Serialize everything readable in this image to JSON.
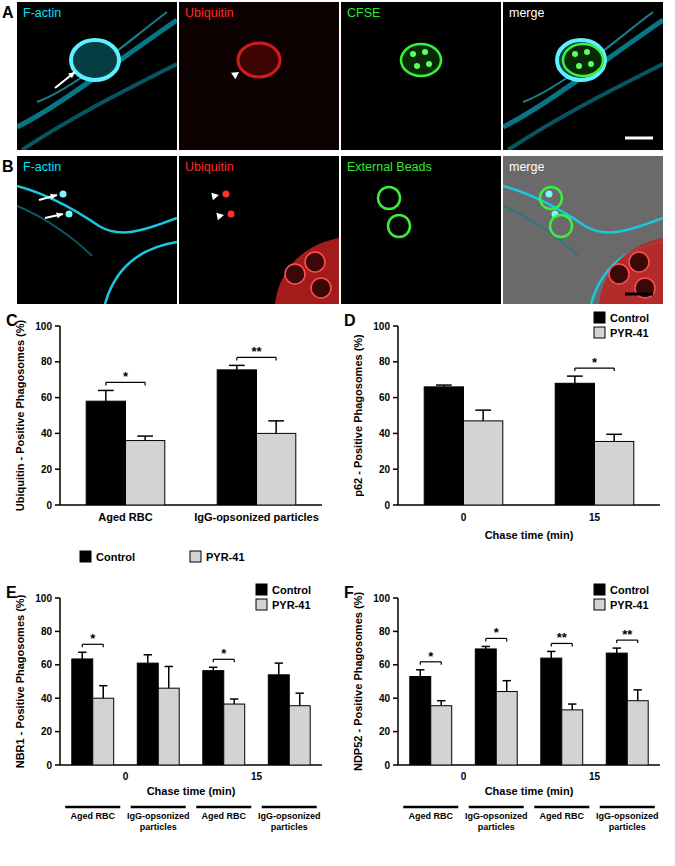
{
  "image_panels": [
    {
      "label": "A",
      "channels": [
        {
          "label": "F-actin",
          "color": "#00e0ff"
        },
        {
          "label": "Ubiquitin",
          "color": "#ff2a2a"
        },
        {
          "label": "CFSE",
          "color": "#2eea2e"
        },
        {
          "label": "merge",
          "color": "#ffffff"
        }
      ]
    },
    {
      "label": "B",
      "channels": [
        {
          "label": "F-actin",
          "color": "#00e0ff"
        },
        {
          "label": "Ubiquitin",
          "color": "#ff2a2a"
        },
        {
          "label": "External Beads",
          "color": "#2eea2e"
        },
        {
          "label": "merge",
          "color": "#ffffff"
        }
      ]
    }
  ],
  "chart_data": [
    {
      "type": "bar",
      "annotations": [
        "C"
      ],
      "categories": [
        "Aged RBC",
        "IgG-opsonized particles"
      ],
      "ylabel": "Ubiquitin - Positive Phagosomes (%)",
      "ylim": [
        0,
        100
      ],
      "yticks": [
        0,
        20,
        40,
        60,
        80,
        100
      ],
      "grid": false,
      "legend": "bottom",
      "series": [
        {
          "name": "Control",
          "color": "#000000",
          "values": [
            58,
            75.5
          ],
          "errors": [
            6,
            2.5
          ]
        },
        {
          "name": "PYR-41",
          "color": "#d3d3d3",
          "values": [
            36,
            40
          ],
          "errors": [
            2.5,
            7
          ]
        }
      ],
      "significance": [
        "*",
        "**"
      ]
    },
    {
      "type": "bar",
      "annotations": [
        "D"
      ],
      "categories": [
        "0",
        "15"
      ],
      "xlabel": "Chase time (min)",
      "ylabel": "p62 - Positive Phagosomes (%)",
      "ylim": [
        0,
        100
      ],
      "yticks": [
        0,
        20,
        40,
        60,
        80,
        100
      ],
      "grid": false,
      "legend": "top-right",
      "series": [
        {
          "name": "Control",
          "color": "#000000",
          "values": [
            66,
            68
          ],
          "errors": [
            1,
            4
          ]
        },
        {
          "name": "PYR-41",
          "color": "#d3d3d3",
          "values": [
            47,
            35.5
          ],
          "errors": [
            6,
            4
          ]
        }
      ],
      "significance": [
        null,
        "*"
      ]
    },
    {
      "type": "bar",
      "annotations": [
        "E"
      ],
      "categories": [
        "Aged RBC",
        "IgG-opsonized particles",
        "Aged RBC",
        "IgG-opsonized particles"
      ],
      "x_groups": [
        "0",
        "15"
      ],
      "xlabel": "Chase time (min)",
      "ylabel": "NBR1 - Positive Phagosomes (%)",
      "ylim": [
        0,
        100
      ],
      "yticks": [
        0,
        20,
        40,
        60,
        80,
        100
      ],
      "grid": false,
      "legend": "top-right",
      "series": [
        {
          "name": "Control",
          "color": "#000000",
          "values": [
            63.5,
            61,
            56.5,
            54
          ],
          "errors": [
            4,
            5,
            2,
            7
          ]
        },
        {
          "name": "PYR-41",
          "color": "#d3d3d3",
          "values": [
            40,
            46,
            36.5,
            35.5
          ],
          "errors": [
            7.5,
            13,
            3,
            7.5
          ]
        }
      ],
      "significance": [
        "*",
        null,
        "*",
        null
      ]
    },
    {
      "type": "bar",
      "annotations": [
        "F"
      ],
      "categories": [
        "Aged RBC",
        "IgG-opsonized particles",
        "Aged RBC",
        "IgG-opsonized particles"
      ],
      "x_groups": [
        "0",
        "15"
      ],
      "xlabel": "Chase time (min)",
      "ylabel": "NDP52 - Positive Phagosomes (%)",
      "ylim": [
        0,
        100
      ],
      "yticks": [
        0,
        20,
        40,
        60,
        80,
        100
      ],
      "grid": false,
      "legend": "top-right",
      "series": [
        {
          "name": "Control",
          "color": "#000000",
          "values": [
            53,
            69.5,
            64,
            67
          ],
          "errors": [
            4,
            1.5,
            4,
            3
          ]
        },
        {
          "name": "PYR-41",
          "color": "#d3d3d3",
          "values": [
            35.5,
            44,
            33,
            38.5
          ],
          "errors": [
            3,
            6.5,
            3.5,
            6.5
          ]
        }
      ],
      "significance": [
        "*",
        "*",
        "**",
        "**"
      ]
    }
  ]
}
